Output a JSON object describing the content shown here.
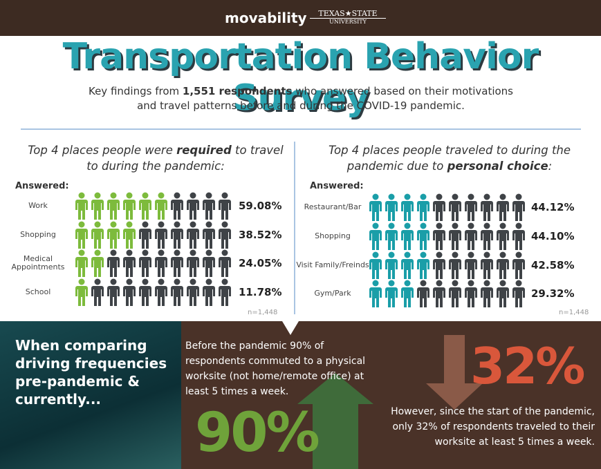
{
  "header": {
    "logo_left": "movability",
    "logo_right_top": "TEXAS★STATE",
    "logo_right_bottom": "UNIVERSITY"
  },
  "title": "Transportation Behavior Survey",
  "subtitle": {
    "before": "Key findings from ",
    "bold": "1,551 respondents",
    "after": " who answered based on their motivations and travel patterns before and during the COVID-19 pandemic."
  },
  "left_panel": {
    "heading": {
      "before": "Top 4 places people were ",
      "bold": "required",
      "after": " to travel to during the pandemic:"
    },
    "answered": "Answered:",
    "rows": [
      {
        "label": "Work",
        "value": 59.08,
        "value_label": "59.08%"
      },
      {
        "label": "Shopping",
        "value": 38.52,
        "value_label": "38.52%"
      },
      {
        "label": "Medical Appointments",
        "value": 24.05,
        "value_label": "24.05%"
      },
      {
        "label": "School",
        "value": 11.78,
        "value_label": "11.78%"
      }
    ],
    "note": "n=1,448"
  },
  "right_panel": {
    "heading": {
      "before": "Top 4 places people traveled to during the pandemic due to ",
      "bold": "personal choice",
      "after": ":"
    },
    "answered": "Answered:",
    "rows": [
      {
        "label": "Restaurant/Bar",
        "value": 44.12,
        "value_label": "44.12%"
      },
      {
        "label": "Shopping",
        "value": 44.1,
        "value_label": "44.10%"
      },
      {
        "label": "Visit Family/Freinds",
        "value": 42.58,
        "value_label": "42.58%"
      },
      {
        "label": "Gym/Park",
        "value": 29.32,
        "value_label": "29.32%"
      }
    ],
    "note": "n=1,448"
  },
  "bottom": {
    "compare_text": "When comparing driving frequencies pre-pandemic & currently...",
    "before_text": "Before the pandemic 90% of respondents commuted to a physical worksite (not home/remote office) at least 5 times a week.",
    "before_big": "90%",
    "after_big": "32%",
    "after_text": "However, since the start of the pandemic, only 32% of respondents traveled to their worksite at least 5 times a week."
  }
}
